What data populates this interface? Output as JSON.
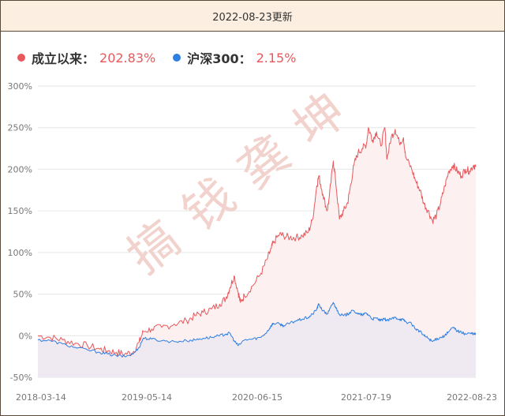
{
  "header": {
    "title": "2022-08-23更新"
  },
  "colors": {
    "fund": "#e8585d",
    "index": "#2f7fe0",
    "fund_fill": "#fdeeee",
    "index_fill": "#ece8f2"
  },
  "legend": [
    {
      "name": "成立以来：",
      "value": "202.83%"
    },
    {
      "name": "沪深300：",
      "value": "2.15%"
    }
  ],
  "watermark": [
    "搞",
    "钱",
    "龚",
    "坤"
  ],
  "chart_data": {
    "type": "line",
    "x_labels": [
      "2018-03-14",
      "2019-05-14",
      "2020-06-15",
      "2021-07-19",
      "2022-08-23"
    ],
    "y_ticks": [
      "300%",
      "250%",
      "200%",
      "150%",
      "100%",
      "50%",
      "0%",
      "-50%"
    ],
    "ylim": [
      -50,
      300
    ],
    "grid": true,
    "series": [
      {
        "name": "成立以来",
        "points": [
          [
            0,
            0
          ],
          [
            0.03,
            -2
          ],
          [
            0.06,
            -5
          ],
          [
            0.09,
            -9
          ],
          [
            0.12,
            -12
          ],
          [
            0.15,
            -16
          ],
          [
            0.17,
            -18
          ],
          [
            0.19,
            -20
          ],
          [
            0.21,
            -22
          ],
          [
            0.23,
            -20
          ],
          [
            0.245,
            -8
          ],
          [
            0.255,
            5
          ],
          [
            0.275,
            8
          ],
          [
            0.3,
            10
          ],
          [
            0.33,
            14
          ],
          [
            0.36,
            18
          ],
          [
            0.38,
            24
          ],
          [
            0.4,
            28
          ],
          [
            0.42,
            32
          ],
          [
            0.44,
            38
          ],
          [
            0.455,
            45
          ],
          [
            0.465,
            58
          ],
          [
            0.475,
            72
          ],
          [
            0.485,
            52
          ],
          [
            0.49,
            40
          ],
          [
            0.5,
            48
          ],
          [
            0.52,
            60
          ],
          [
            0.54,
            75
          ],
          [
            0.555,
            92
          ],
          [
            0.565,
            105
          ],
          [
            0.57,
            112
          ],
          [
            0.585,
            122
          ],
          [
            0.595,
            120
          ],
          [
            0.61,
            118
          ],
          [
            0.625,
            118
          ],
          [
            0.64,
            120
          ],
          [
            0.655,
            125
          ],
          [
            0.665,
            140
          ],
          [
            0.675,
            180
          ],
          [
            0.68,
            192
          ],
          [
            0.69,
            170
          ],
          [
            0.7,
            150
          ],
          [
            0.705,
            165
          ],
          [
            0.715,
            210
          ],
          [
            0.72,
            190
          ],
          [
            0.73,
            140
          ],
          [
            0.74,
            150
          ],
          [
            0.75,
            160
          ],
          [
            0.755,
            175
          ],
          [
            0.765,
            205
          ],
          [
            0.775,
            220
          ],
          [
            0.785,
            225
          ],
          [
            0.795,
            230
          ],
          [
            0.8,
            250
          ],
          [
            0.81,
            235
          ],
          [
            0.82,
            245
          ],
          [
            0.83,
            228
          ],
          [
            0.84,
            250
          ],
          [
            0.845,
            212
          ],
          [
            0.855,
            238
          ],
          [
            0.865,
            248
          ],
          [
            0.875,
            232
          ],
          [
            0.885,
            238
          ],
          [
            0.89,
            215
          ],
          [
            0.905,
            200
          ],
          [
            0.915,
            185
          ],
          [
            0.925,
            175
          ],
          [
            0.935,
            158
          ],
          [
            0.945,
            150
          ],
          [
            0.955,
            138
          ],
          [
            0.965,
            145
          ],
          [
            0.975,
            160
          ],
          [
            0.985,
            180
          ],
          [
            0.995,
            198
          ],
          [
            1.005,
            205
          ],
          [
            1.015,
            198
          ],
          [
            1.025,
            192
          ],
          [
            1.035,
            200
          ],
          [
            1.045,
            198
          ],
          [
            1.055,
            205
          ],
          [
            1.06,
            202.83
          ]
        ]
      },
      {
        "name": "沪深300",
        "points": [
          [
            0,
            -5
          ],
          [
            0.03,
            -6
          ],
          [
            0.06,
            -10
          ],
          [
            0.09,
            -14
          ],
          [
            0.12,
            -17
          ],
          [
            0.15,
            -20
          ],
          [
            0.17,
            -22
          ],
          [
            0.19,
            -24
          ],
          [
            0.21,
            -25
          ],
          [
            0.23,
            -22
          ],
          [
            0.245,
            -14
          ],
          [
            0.255,
            -3
          ],
          [
            0.275,
            -4
          ],
          [
            0.3,
            -6
          ],
          [
            0.33,
            -7
          ],
          [
            0.36,
            -6
          ],
          [
            0.38,
            -5
          ],
          [
            0.4,
            -3
          ],
          [
            0.42,
            -2
          ],
          [
            0.44,
            0
          ],
          [
            0.455,
            2
          ],
          [
            0.465,
            3
          ],
          [
            0.475,
            -6
          ],
          [
            0.485,
            -12
          ],
          [
            0.5,
            -5
          ],
          [
            0.52,
            -4
          ],
          [
            0.54,
            -2
          ],
          [
            0.555,
            5
          ],
          [
            0.565,
            12
          ],
          [
            0.57,
            15
          ],
          [
            0.585,
            14
          ],
          [
            0.595,
            12
          ],
          [
            0.61,
            15
          ],
          [
            0.625,
            18
          ],
          [
            0.64,
            20
          ],
          [
            0.655,
            22
          ],
          [
            0.665,
            26
          ],
          [
            0.675,
            32
          ],
          [
            0.68,
            38
          ],
          [
            0.69,
            30
          ],
          [
            0.7,
            26
          ],
          [
            0.705,
            30
          ],
          [
            0.715,
            40
          ],
          [
            0.72,
            35
          ],
          [
            0.73,
            26
          ],
          [
            0.74,
            24
          ],
          [
            0.75,
            26
          ],
          [
            0.755,
            28
          ],
          [
            0.765,
            30
          ],
          [
            0.775,
            26
          ],
          [
            0.785,
            25
          ],
          [
            0.795,
            27
          ],
          [
            0.8,
            25
          ],
          [
            0.81,
            20
          ],
          [
            0.82,
            21
          ],
          [
            0.83,
            18
          ],
          [
            0.84,
            20
          ],
          [
            0.845,
            18
          ],
          [
            0.855,
            20
          ],
          [
            0.865,
            22
          ],
          [
            0.875,
            20
          ],
          [
            0.885,
            19
          ],
          [
            0.89,
            17
          ],
          [
            0.905,
            14
          ],
          [
            0.915,
            8
          ],
          [
            0.925,
            5
          ],
          [
            0.935,
            0
          ],
          [
            0.945,
            -3
          ],
          [
            0.955,
            -7
          ],
          [
            0.965,
            -4
          ],
          [
            0.975,
            -2
          ],
          [
            0.985,
            0
          ],
          [
            0.995,
            5
          ],
          [
            1.005,
            10
          ],
          [
            1.015,
            6
          ],
          [
            1.025,
            4
          ],
          [
            1.035,
            2
          ],
          [
            1.045,
            3
          ],
          [
            1.055,
            2
          ],
          [
            1.06,
            2.15
          ]
        ]
      }
    ]
  }
}
